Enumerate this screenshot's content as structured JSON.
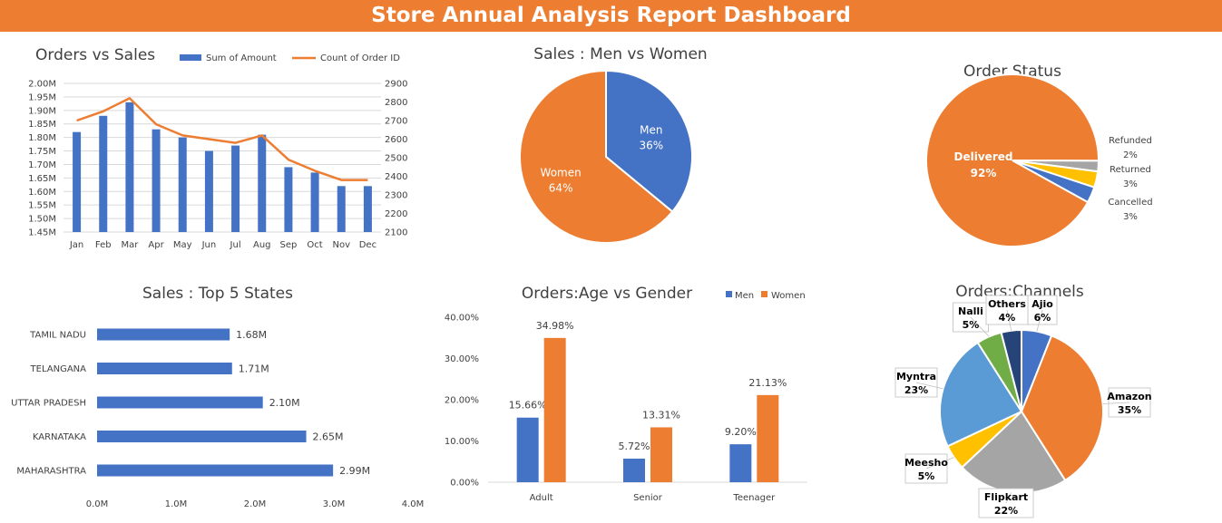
{
  "dashboard_title": "Store Annual Analysis Report  Dashboard",
  "colors": {
    "blue": "#4472C4",
    "orange": "#ED7D31",
    "gray": "#A5A5A5",
    "yellow": "#FFC000",
    "lightblue": "#5B9BD5",
    "green": "#70AD47",
    "navy": "#264478",
    "banner": "#ED7D31"
  },
  "chart_data": [
    {
      "id": "orders-vs-sales",
      "type": "bar",
      "title": "Orders vs Sales",
      "categories": [
        "Jan",
        "Feb",
        "Mar",
        "Apr",
        "May",
        "Jun",
        "Jul",
        "Aug",
        "Sep",
        "Oct",
        "Nov",
        "Dec"
      ],
      "series": [
        {
          "name": "Sum of Amount",
          "kind": "bar",
          "axis": "left",
          "values": [
            1.82,
            1.88,
            1.93,
            1.83,
            1.8,
            1.75,
            1.77,
            1.81,
            1.69,
            1.67,
            1.62,
            1.62
          ]
        },
        {
          "name": "Count of Order ID",
          "kind": "line",
          "axis": "right",
          "values": [
            2700,
            2750,
            2820,
            2680,
            2620,
            2600,
            2580,
            2620,
            2490,
            2430,
            2380,
            2380
          ]
        }
      ],
      "ylim": [
        1.45,
        2.0
      ],
      "y_ticks": [
        "2.00M",
        "1.95M",
        "1.90M",
        "1.85M",
        "1.80M",
        "1.75M",
        "1.70M",
        "1.65M",
        "1.60M",
        "1.55M",
        "1.50M",
        "1.45M"
      ],
      "y2lim": [
        2100,
        2900
      ],
      "y2_ticks": [
        "2900",
        "2800",
        "2700",
        "2600",
        "2500",
        "2400",
        "2300",
        "2200",
        "2100"
      ],
      "legend": "top"
    },
    {
      "id": "sales-men-women",
      "type": "pie",
      "title": "Sales : Men vs Women",
      "slices": [
        {
          "label": "Men",
          "value": 36,
          "text": "36%"
        },
        {
          "label": "Women",
          "value": 64,
          "text": "64%"
        }
      ]
    },
    {
      "id": "order-status",
      "type": "pie",
      "title": "Order Status",
      "slices": [
        {
          "label": "Delivered",
          "value": 92,
          "text": "92%"
        },
        {
          "label": "Refunded",
          "value": 2,
          "text": "2%"
        },
        {
          "label": "Returned",
          "value": 3,
          "text": "3%"
        },
        {
          "label": "Cancelled",
          "value": 3,
          "text": "3%"
        }
      ]
    },
    {
      "id": "top-states",
      "type": "bar",
      "orientation": "horizontal",
      "title": "Sales : Top 5 States",
      "categories": [
        "TAMIL NADU",
        "TELANGANA",
        "UTTAR PRADESH",
        "KARNATAKA",
        "MAHARASHTRA"
      ],
      "values": [
        1.68,
        1.71,
        2.1,
        2.65,
        2.99
      ],
      "value_labels": [
        "1.68M",
        "1.71M",
        "2.10M",
        "2.65M",
        "2.99M"
      ],
      "xlim": [
        0,
        4
      ],
      "x_ticks": [
        "0.0M",
        "1.0M",
        "2.0M",
        "3.0M",
        "4.0M"
      ]
    },
    {
      "id": "age-gender",
      "type": "bar",
      "title": "Orders:Age vs Gender",
      "categories": [
        "Adult",
        "Senior",
        "Teenager"
      ],
      "series": [
        {
          "name": "Men",
          "values": [
            15.66,
            5.72,
            9.2
          ],
          "labels": [
            "15.66%",
            "5.72%",
            "9.20%"
          ]
        },
        {
          "name": "Women",
          "values": [
            34.98,
            13.31,
            21.13
          ],
          "labels": [
            "34.98%",
            "13.31%",
            "21.13%"
          ]
        }
      ],
      "ylim": [
        0,
        40
      ],
      "y_ticks": [
        "40.00%",
        "30.00%",
        "20.00%",
        "10.00%",
        "0.00%"
      ],
      "legend": "top-right"
    },
    {
      "id": "channels",
      "type": "pie",
      "title": "Orders:Channels",
      "slices": [
        {
          "label": "Ajio",
          "value": 6,
          "text": "6%"
        },
        {
          "label": "Amazon",
          "value": 35,
          "text": "35%"
        },
        {
          "label": "Flipkart",
          "value": 22,
          "text": "22%"
        },
        {
          "label": "Meesho",
          "value": 5,
          "text": "5%"
        },
        {
          "label": "Myntra",
          "value": 23,
          "text": "23%"
        },
        {
          "label": "Nalli",
          "value": 5,
          "text": "5%"
        },
        {
          "label": "Others",
          "value": 4,
          "text": "4%"
        }
      ]
    }
  ]
}
